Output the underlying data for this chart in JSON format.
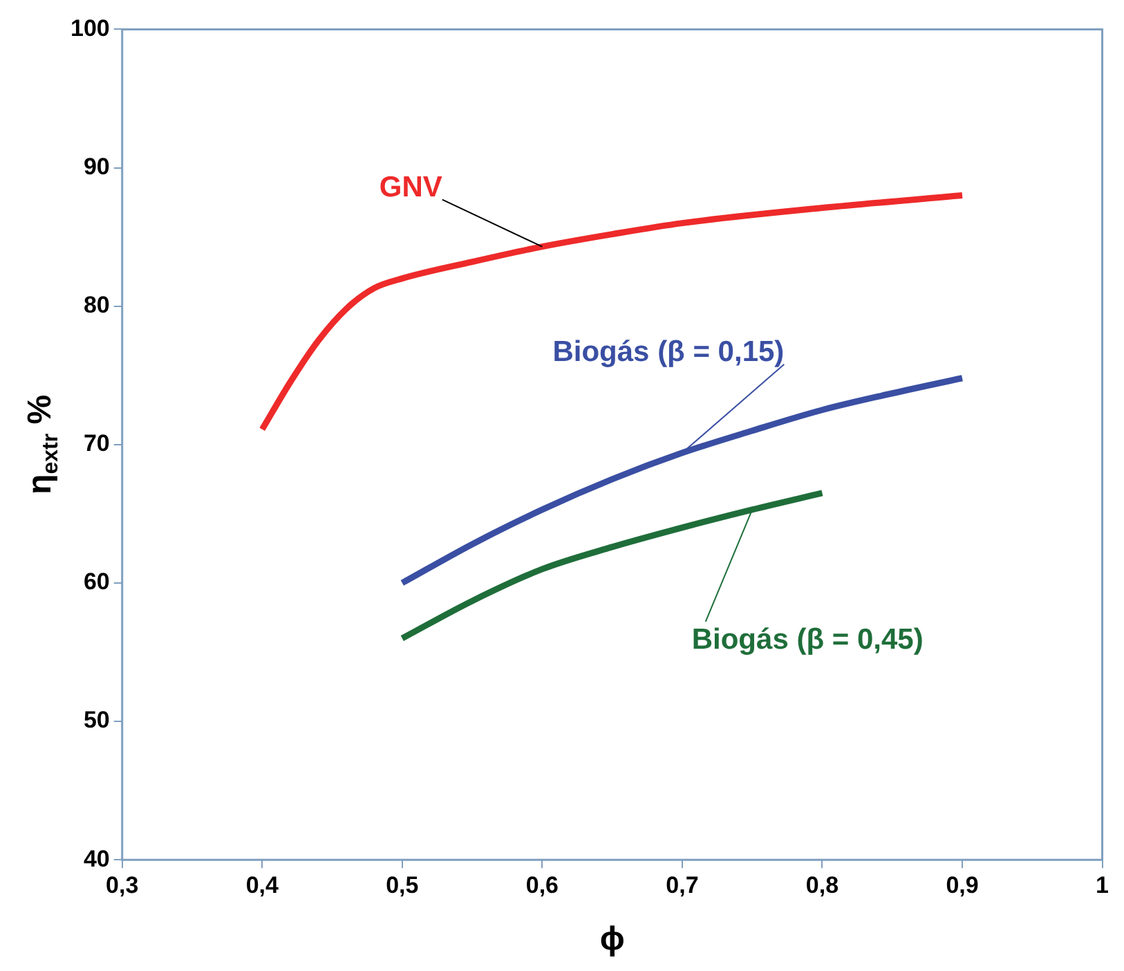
{
  "chart_data": {
    "type": "line",
    "xlabel": "ϕ",
    "ylabel": "η$_{extr}$ %",
    "xlim": [
      0.3,
      1
    ],
    "ylim": [
      40,
      100
    ],
    "xticks": [
      {
        "value": 0.3,
        "label": "0,3"
      },
      {
        "value": 0.4,
        "label": "0,4"
      },
      {
        "value": 0.5,
        "label": "0,5"
      },
      {
        "value": 0.6,
        "label": "0,6"
      },
      {
        "value": 0.7,
        "label": "0,7"
      },
      {
        "value": 0.8,
        "label": "0,8"
      },
      {
        "value": 0.9,
        "label": "0,9"
      },
      1
    ],
    "yticks": [
      40,
      50,
      60,
      70,
      80,
      90,
      100
    ],
    "grid": false,
    "legend": false,
    "marker": "none",
    "line_style": "solid",
    "series": [
      {
        "name": "GNV",
        "color": "#ee2a2a",
        "x": [
          0.4,
          0.42,
          0.44,
          0.46,
          0.48,
          0.5,
          0.55,
          0.6,
          0.65,
          0.7,
          0.8,
          0.9
        ],
        "values": [
          71.1,
          74.5,
          77.5,
          79.8,
          81.3,
          82,
          83.2,
          84.3,
          85.2,
          86,
          87.1,
          88
        ]
      },
      {
        "name": "Biogás (β = 0,15)",
        "color": "#3a4fa3",
        "x": [
          0.5,
          0.55,
          0.6,
          0.65,
          0.7,
          0.75,
          0.8,
          0.85,
          0.9
        ],
        "values": [
          60,
          62.8,
          65.3,
          67.5,
          69.4,
          71,
          72.5,
          73.7,
          74.8
        ]
      },
      {
        "name": "Biogás (β = 0,45)",
        "color": "#1f6e3a",
        "x": [
          0.5,
          0.55,
          0.6,
          0.65,
          0.7,
          0.75,
          0.8
        ],
        "values": [
          56,
          58.7,
          61,
          62.6,
          64,
          65.3,
          66.5
        ]
      }
    ]
  }
}
